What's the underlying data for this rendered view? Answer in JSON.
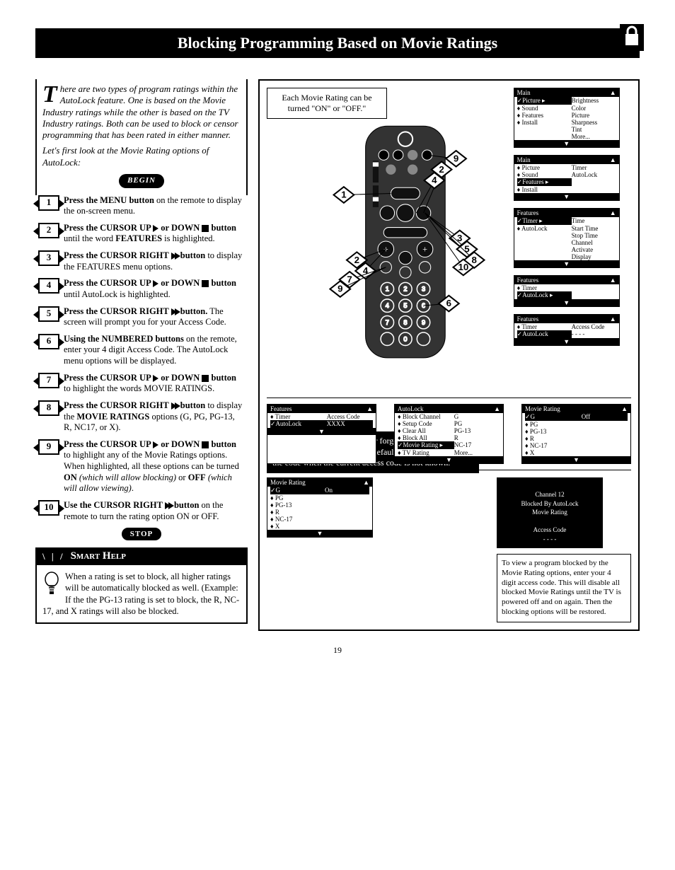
{
  "title": "Blocking Programming Based on Movie Ratings",
  "intro": {
    "dropcap": "T",
    "p1_rest": "here are two types of program ratings within the AutoLock feature. One is based on the Movie Industry ratings while the other is based on the TV Industry ratings. Both can be used to block or censor programming that has been rated in either manner.",
    "p2": "Let's first look at the Movie Rating options of AutoLock:"
  },
  "begin_label": "BEGIN",
  "stop_label": "STOP",
  "steps": [
    {
      "n": "1",
      "html": "<b>Press the MENU button</b> on the remote to display the on-screen menu."
    },
    {
      "n": "2",
      "html": "<b>Press the CURSOR UP <span class='tri-r'></span> or DOWN <span class='sq-stop'></span> button</b> until the word <b>FEATURES</b> is highlighted."
    },
    {
      "n": "3",
      "html": "<b>Press the CURSOR RIGHT <span class='tri-rr'><span class='tri-r'></span><span class='tri-r'></span></span> button</b> to display the FEATURES menu options."
    },
    {
      "n": "4",
      "html": "<b>Press the CURSOR UP <span class='tri-r'></span> or DOWN <span class='sq-stop'></span> button</b> until AutoLock is highlighted."
    },
    {
      "n": "5",
      "html": "<b>Press the CURSOR RIGHT <span class='tri-rr'><span class='tri-r'></span><span class='tri-r'></span></span> button.</b> The screen will prompt you for your Access Code."
    },
    {
      "n": "6",
      "html": "<b>Using the NUMBERED buttons</b> on the remote, enter your 4 digit Access Code. The AutoLock menu options will be displayed."
    },
    {
      "n": "7",
      "html": "<b>Press the CURSOR UP <span class='tri-r'></span> or DOWN <span class='sq-stop'></span> button</b> to highlight the words MOVIE RATINGS."
    },
    {
      "n": "8",
      "html": "<b>Press the CURSOR RIGHT <span class='tri-rr'><span class='tri-r'></span><span class='tri-r'></span></span> button</b> to display the <b>MOVIE RATINGS</b> options (G, PG, PG-13, R, NC17, or X)."
    },
    {
      "n": "9",
      "html": "<b>Press the CURSOR UP <span class='tri-r'></span> or DOWN <span class='sq-stop'></span> button</b> to highlight any of the Movie Ratings options. When highlighted, all these options can be turned <b>ON</b> <i>(which will allow blocking)</i> or <b>OFF</b> <i>(which will allow viewing)</i>."
    },
    {
      "n": "10",
      "html": "<b>Use the CURSOR RIGHT <span class='tri-rr'><span class='tri-r'></span><span class='tri-r'></span></span> button</b> on the remote to turn the rating option ON or OFF."
    }
  ],
  "smart_help": {
    "title": "Smart Help",
    "body": "When a rating is set to block, all higher ratings will be automatically blocked as well. (Example: If the the PG-13 rating is set to block, the R, NC-17, and X ratings will also be blocked."
  },
  "callout_text": "Each Movie Rating can be turned \"ON\" or \"OFF.\"",
  "note_text": "NOTE: Remember, if you ever forget your Access Code, the 0,7,1,1 access code is the default code or a way to reset the code when the current access code is not known.",
  "menus": {
    "main1": {
      "title": "Main",
      "rows": [
        [
          "✓Picture",
          "Brightness"
        ],
        [
          "♦ Sound",
          "Color"
        ],
        [
          "♦ Features",
          "Picture"
        ],
        [
          "♦ Install",
          "Sharpness"
        ],
        [
          "",
          "Tint"
        ],
        [
          "",
          "More..."
        ]
      ],
      "sel": 0,
      "arrowCol": 1
    },
    "main2": {
      "title": "Main",
      "rows": [
        [
          "♦ Picture",
          "Timer"
        ],
        [
          "♦ Sound",
          "AutoLock"
        ],
        [
          "✓Features",
          ""
        ],
        [
          "♦ Install",
          ""
        ]
      ],
      "sel": 2,
      "arrowCol": 1
    },
    "feat_time": {
      "title": "Features",
      "rows": [
        [
          "✓Timer",
          "Time"
        ],
        [
          "♦ AutoLock",
          "Start Time"
        ],
        [
          "",
          "Stop Time"
        ],
        [
          "",
          "Channel"
        ],
        [
          "",
          "Activate"
        ],
        [
          "",
          "Display"
        ]
      ],
      "sel": 0,
      "arrowCol": 1
    },
    "feat_auto": {
      "title": "Features",
      "rows": [
        [
          "♦ Timer",
          ""
        ],
        [
          "✓AutoLock",
          ""
        ]
      ],
      "sel": 1,
      "arrowCol": 1
    },
    "feat_code": {
      "title": "Features",
      "rows": [
        [
          "♦ Timer",
          "Access Code"
        ],
        [
          "✓AutoLock",
          "- - - -"
        ]
      ],
      "sel": 1
    },
    "feat_xxxx": {
      "title": "Features",
      "rows": [
        [
          "♦ Timer",
          "Access Code"
        ],
        [
          "✓AutoLock",
          "XXXX"
        ]
      ],
      "sel": 1,
      "sel2": 1
    },
    "autolock": {
      "title": "AutoLock",
      "rows": [
        [
          "♦ Block Channel",
          "G"
        ],
        [
          "♦ Setup Code",
          "PG"
        ],
        [
          "♦ Clear All",
          "PG-13"
        ],
        [
          "♦ Block All",
          "R"
        ],
        [
          "✓Movie Rating",
          "NC-17"
        ],
        [
          "♦ TV Rating",
          "More..."
        ]
      ],
      "sel": 4,
      "arrowCol": 1
    },
    "movie_off": {
      "title": "Movie Rating",
      "rows": [
        [
          "✓G",
          "Off"
        ],
        [
          "♦ PG",
          ""
        ],
        [
          "♦ PG-13",
          ""
        ],
        [
          "♦ R",
          ""
        ],
        [
          "♦ NC-17",
          ""
        ],
        [
          "♦ X",
          ""
        ]
      ],
      "sel": 0,
      "sel2": 0
    },
    "movie_on": {
      "title": "Movie Rating",
      "rows": [
        [
          "✓G",
          "On"
        ],
        [
          "♦ PG",
          ""
        ],
        [
          "♦ PG-13",
          ""
        ],
        [
          "♦ R",
          ""
        ],
        [
          "♦ NC-17",
          ""
        ],
        [
          "♦ X",
          ""
        ]
      ],
      "sel": 0,
      "sel2": 0
    }
  },
  "blocked_screen": {
    "l1": "Channel 12",
    "l2": "Blocked By AutoLock",
    "l3": "Movie Rating",
    "l4": "Access Code",
    "l5": "- - - -"
  },
  "info_text": "To view a program blocked by the Movie Rating options, enter your 4 digit access code. This will disable all blocked Movie Ratings until the TV is powered off and on again. Then the blocking options will be restored.",
  "page_number": "19",
  "remote_callouts": [
    "1",
    "2",
    "3",
    "4",
    "5",
    "6",
    "7",
    "8",
    "9",
    "10",
    "2",
    "4",
    "7",
    "9"
  ]
}
